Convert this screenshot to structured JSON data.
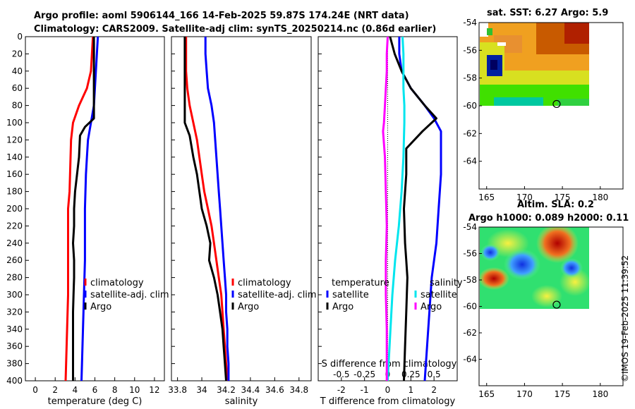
{
  "titles": {
    "main_line1": "Argo profile: aoml 5906144_166 14-Feb-2025 59.87S 174.24E (NRT data)",
    "main_line2": "Climatology: CARS2009. Satellite-adj clim: synTS_20250214.nc (0.86d earlier)",
    "sst_map": "sat. SST: 6.27 Argo: 5.9",
    "sla_map_line1": "Altim. SLA: 0.2",
    "sla_map_line2": "Argo h1000: 0.089 h2000: 0.11"
  },
  "copyright": "©IMOS 19-Feb-2025 11:39:52",
  "colors": {
    "climatology": "#ff0000",
    "satellite": "#0000ff",
    "argo": "#000000",
    "s_satellite": "#00e5ee",
    "s_argo": "#ff00ff"
  },
  "chart_data": [
    {
      "type": "line",
      "title": "",
      "xlabel": "temperature (deg C)",
      "ylabel": "",
      "xlim": [
        -1,
        13
      ],
      "ylim": [
        400,
        0
      ],
      "xticks": [
        0,
        2,
        4,
        6,
        8,
        10,
        12
      ],
      "yticks": [
        0,
        20,
        40,
        60,
        80,
        100,
        120,
        140,
        160,
        180,
        200,
        220,
        240,
        260,
        280,
        300,
        320,
        340,
        360,
        380,
        400
      ],
      "legend": [
        "climatology",
        "satellite-adj. clim",
        "Argo"
      ],
      "series": [
        {
          "name": "climatology",
          "color": "#ff0000",
          "depth": [
            0,
            20,
            40,
            60,
            80,
            100,
            120,
            140,
            160,
            180,
            200,
            220,
            240,
            260,
            280,
            300,
            320,
            340,
            360,
            380,
            400
          ],
          "values": [
            5.8,
            5.7,
            5.6,
            5.2,
            4.4,
            3.8,
            3.6,
            3.55,
            3.5,
            3.45,
            3.3,
            3.3,
            3.3,
            3.3,
            3.3,
            3.3,
            3.25,
            3.2,
            3.15,
            3.1,
            3.05
          ]
        },
        {
          "name": "satellite-adj. clim",
          "color": "#0000ff",
          "depth": [
            0,
            20,
            40,
            60,
            80,
            100,
            120,
            140,
            160,
            180,
            200,
            220,
            240,
            260,
            280,
            300,
            320,
            340,
            360,
            380,
            400
          ],
          "values": [
            6.3,
            6.2,
            6.1,
            6.0,
            5.9,
            5.6,
            5.3,
            5.2,
            5.1,
            5.05,
            5.0,
            5.0,
            5.0,
            5.0,
            4.95,
            4.9,
            4.85,
            4.8,
            4.75,
            4.7,
            4.65
          ]
        },
        {
          "name": "Argo",
          "color": "#000000",
          "depth": [
            0,
            20,
            40,
            60,
            80,
            95,
            105,
            115,
            140,
            160,
            180,
            200,
            220,
            240,
            260,
            280,
            300,
            320,
            340,
            360,
            380,
            400
          ],
          "values": [
            5.9,
            5.9,
            5.9,
            5.9,
            5.9,
            5.9,
            5.0,
            4.5,
            4.4,
            4.2,
            4.0,
            3.9,
            3.9,
            3.8,
            3.9,
            3.9,
            3.85,
            3.8,
            3.8,
            3.8,
            3.8,
            3.8
          ]
        }
      ]
    },
    {
      "type": "line",
      "title": "",
      "xlabel": "salinity",
      "ylabel": "",
      "xlim": [
        33.75,
        34.9
      ],
      "ylim": [
        400,
        0
      ],
      "xticks": [
        33.8,
        34,
        34.2,
        34.4,
        34.6,
        34.8
      ],
      "legend": [
        "climatology",
        "satellite-adj. clim",
        "Argo"
      ],
      "series": [
        {
          "name": "climatology",
          "color": "#ff0000",
          "depth": [
            0,
            20,
            40,
            60,
            80,
            100,
            120,
            140,
            160,
            180,
            200,
            220,
            240,
            260,
            280,
            300,
            320,
            340,
            360,
            380,
            400
          ],
          "values": [
            33.87,
            33.87,
            33.87,
            33.88,
            33.9,
            33.93,
            33.96,
            33.98,
            34.0,
            34.02,
            34.05,
            34.08,
            34.1,
            34.12,
            34.14,
            34.16,
            34.17,
            34.18,
            34.19,
            34.2,
            34.21
          ]
        },
        {
          "name": "satellite-adj. clim",
          "color": "#0000ff",
          "depth": [
            0,
            20,
            40,
            60,
            80,
            100,
            120,
            140,
            160,
            180,
            200,
            220,
            240,
            260,
            280,
            300,
            320,
            340,
            360,
            380,
            400
          ],
          "values": [
            34.03,
            34.03,
            34.04,
            34.05,
            34.08,
            34.1,
            34.11,
            34.12,
            34.13,
            34.14,
            34.15,
            34.16,
            34.17,
            34.18,
            34.19,
            34.2,
            34.2,
            34.21,
            34.21,
            34.22,
            34.22
          ]
        },
        {
          "name": "Argo",
          "color": "#000000",
          "depth": [
            0,
            20,
            40,
            60,
            80,
            100,
            115,
            140,
            160,
            180,
            200,
            220,
            240,
            260,
            280,
            300,
            320,
            340,
            360,
            380,
            400
          ],
          "values": [
            33.86,
            33.86,
            33.86,
            33.86,
            33.86,
            33.86,
            33.9,
            33.93,
            33.96,
            33.98,
            34.0,
            34.04,
            34.07,
            34.06,
            34.1,
            34.13,
            34.15,
            34.17,
            34.18,
            34.19,
            34.2
          ]
        }
      ]
    },
    {
      "type": "line",
      "title": "",
      "xlabel": "T difference from climatology",
      "ylabel": "",
      "xlim": [
        -3,
        3
      ],
      "ylim": [
        400,
        0
      ],
      "xticks": [
        -2,
        -1,
        0,
        1,
        2
      ],
      "secondary_axis": {
        "label": "S difference from climatology",
        "range": [
          -0.75,
          0.75
        ],
        "ticks": [
          "-0.5",
          "-0.25",
          "0",
          "0.25",
          "0.5"
        ]
      },
      "legend": {
        "temperature_header": "temperature",
        "salinity_header": "salinity",
        "temperature": [
          "satellite",
          "Argo"
        ],
        "salinity": [
          "satellite",
          "Argo"
        ]
      },
      "series": [
        {
          "name": "T satellite",
          "color": "#0000ff",
          "depth": [
            0,
            20,
            40,
            60,
            80,
            95,
            110,
            130,
            160,
            200,
            240,
            280,
            320,
            360,
            400
          ],
          "values": [
            0.5,
            0.5,
            0.6,
            1.0,
            1.6,
            2.0,
            2.3,
            2.3,
            2.3,
            2.2,
            2.1,
            1.9,
            1.8,
            1.7,
            1.6
          ]
        },
        {
          "name": "T Argo",
          "color": "#000000",
          "depth": [
            0,
            20,
            40,
            60,
            80,
            95,
            110,
            130,
            160,
            200,
            240,
            260,
            280,
            320,
            360,
            400
          ],
          "values": [
            0.1,
            0.3,
            0.6,
            1.0,
            1.6,
            2.1,
            1.5,
            0.8,
            0.8,
            0.7,
            0.75,
            0.8,
            0.85,
            0.8,
            0.75,
            0.7
          ]
        },
        {
          "name": "S satellite",
          "color": "#00e5ee",
          "depth": [
            0,
            20,
            40,
            60,
            80,
            100,
            140,
            180,
            220,
            260,
            300,
            340,
            380,
            400
          ],
          "values": [
            0.16,
            0.17,
            0.17,
            0.17,
            0.18,
            0.18,
            0.17,
            0.15,
            0.12,
            0.08,
            0.05,
            0.03,
            0.01,
            0.0
          ]
        },
        {
          "name": "S Argo",
          "color": "#ff00ff",
          "depth": [
            0,
            20,
            40,
            60,
            80,
            100,
            110,
            140,
            180,
            220,
            260,
            300,
            340,
            380,
            400
          ],
          "values": [
            0.0,
            -0.01,
            -0.01,
            -0.02,
            -0.03,
            -0.04,
            -0.05,
            -0.03,
            -0.02,
            -0.01,
            -0.02,
            -0.02,
            -0.01,
            -0.01,
            -0.01
          ]
        }
      ]
    },
    {
      "type": "heatmap",
      "title": "sat. SST: 6.27 Argo: 5.9",
      "xlim": [
        164,
        183
      ],
      "ylim": [
        -66,
        -54
      ],
      "xticks": [
        165,
        170,
        175,
        180
      ],
      "yticks": [
        -54,
        -56,
        -58,
        -60,
        -62,
        -64
      ],
      "marker": {
        "lon": 174.24,
        "lat": -59.87
      }
    },
    {
      "type": "heatmap",
      "title": "Altim. SLA: 0.2",
      "xlim": [
        164,
        183
      ],
      "ylim": [
        -66,
        -54
      ],
      "xticks": [
        165,
        170,
        175,
        180
      ],
      "yticks": [
        -54,
        -56,
        -58,
        -60,
        -62,
        -64
      ],
      "marker": {
        "lon": 174.24,
        "lat": -59.87
      }
    }
  ]
}
